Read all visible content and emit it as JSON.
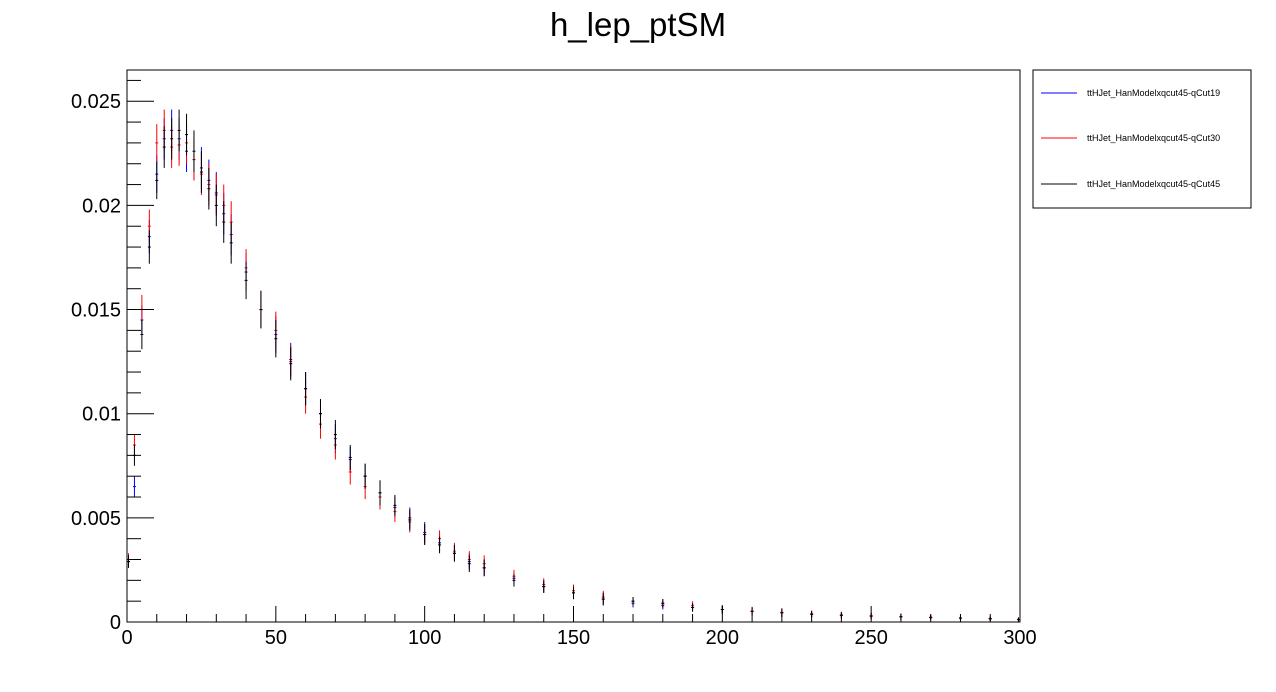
{
  "chart_data": {
    "type": "scatter",
    "title": "h_lep_ptSM",
    "xlabel": "",
    "ylabel": "",
    "xlim": [
      0,
      300
    ],
    "ylim": [
      0,
      0.0265
    ],
    "x_ticks": [
      0,
      50,
      100,
      150,
      200,
      250,
      300
    ],
    "x_tick_labels": [
      "0",
      "50",
      "100",
      "150",
      "200",
      "250",
      "300"
    ],
    "y_ticks": [
      0,
      0.005,
      0.01,
      0.015,
      0.02,
      0.025
    ],
    "y_tick_labels": [
      "0",
      "0.005",
      "0.01",
      "0.015",
      "0.02",
      "0.025"
    ],
    "grid": false,
    "legend_position": "outside-right-top",
    "bin_width": 1,
    "x": [
      0.5,
      2.5,
      5,
      7.5,
      10,
      12.5,
      15,
      17.5,
      20,
      22.5,
      25,
      27.5,
      30,
      32.5,
      35,
      40,
      45,
      50,
      55,
      60,
      65,
      70,
      75,
      80,
      85,
      90,
      95,
      100,
      105,
      110,
      115,
      120,
      130,
      140,
      150,
      160,
      170,
      180,
      190,
      200,
      210,
      220,
      230,
      240,
      250,
      260,
      270,
      280,
      290,
      299.5
    ],
    "series": [
      {
        "name": "ttHJet_HanModelxqcut45-qCut19",
        "color": "#0000ff",
        "values": [
          0.0029,
          0.0065,
          0.0145,
          0.0185,
          0.0215,
          0.0232,
          0.0236,
          0.0232,
          0.0226,
          0.0222,
          0.0218,
          0.0212,
          0.0206,
          0.0196,
          0.0186,
          0.0168,
          0.015,
          0.0138,
          0.0126,
          0.0112,
          0.01,
          0.0088,
          0.0078,
          0.007,
          0.0062,
          0.0055,
          0.005,
          0.0043,
          0.0038,
          0.0033,
          0.0029,
          0.0026,
          0.0021,
          0.0017,
          0.0014,
          0.0011,
          0.0009,
          0.0008,
          0.0007,
          0.0006,
          0.00052,
          0.00045,
          0.00038,
          0.00033,
          0.00029,
          0.00025,
          0.00022,
          0.00019,
          0.00016,
          0.00012
        ],
        "errors": [
          0.0003,
          0.0005,
          0.0007,
          0.0008,
          0.0009,
          0.001,
          0.001,
          0.001,
          0.001,
          0.001,
          0.001,
          0.001,
          0.001,
          0.001,
          0.001,
          0.0009,
          0.0009,
          0.0009,
          0.0008,
          0.0008,
          0.0007,
          0.0007,
          0.0006,
          0.0006,
          0.0006,
          0.0005,
          0.0005,
          0.0005,
          0.0004,
          0.0004,
          0.0004,
          0.0004,
          0.0003,
          0.0003,
          0.0003,
          0.0003,
          0.0002,
          0.0002,
          0.0002,
          0.0002,
          0.0002,
          0.0002,
          0.00015,
          0.00015,
          0.00015,
          0.00015,
          0.0001,
          0.0001,
          0.0001,
          0.0001
        ]
      },
      {
        "name": "ttHJet_HanModelxqcut45-qCut30",
        "color": "#ff0000",
        "values": [
          0.003,
          0.0085,
          0.015,
          0.019,
          0.023,
          0.0236,
          0.0228,
          0.0229,
          0.023,
          0.0222,
          0.0215,
          0.021,
          0.0205,
          0.02,
          0.0192,
          0.017,
          0.015,
          0.014,
          0.0125,
          0.0108,
          0.0095,
          0.0085,
          0.0072,
          0.0065,
          0.006,
          0.0053,
          0.0048,
          0.0042,
          0.004,
          0.0034,
          0.003,
          0.0028,
          0.0022,
          0.0018,
          0.0015,
          0.0012,
          0.001,
          0.0009,
          0.0008,
          0.0006,
          0.00053,
          0.00046,
          0.0004,
          0.00034,
          0.0003,
          0.00026,
          0.00023,
          0.0002,
          0.00017,
          0.00013
        ],
        "errors": [
          0.0003,
          0.0005,
          0.0007,
          0.0008,
          0.0009,
          0.001,
          0.001,
          0.001,
          0.001,
          0.001,
          0.001,
          0.001,
          0.001,
          0.001,
          0.001,
          0.0009,
          0.0009,
          0.0009,
          0.0008,
          0.0008,
          0.0007,
          0.0007,
          0.0006,
          0.0006,
          0.0006,
          0.0005,
          0.0005,
          0.0005,
          0.0004,
          0.0004,
          0.0004,
          0.0004,
          0.0003,
          0.0003,
          0.0003,
          0.0003,
          0.0002,
          0.0002,
          0.0002,
          0.0002,
          0.0002,
          0.0002,
          0.00015,
          0.00015,
          0.00015,
          0.00015,
          0.0001,
          0.0001,
          0.0001,
          0.0001
        ]
      },
      {
        "name": "ttHJet_HanModelxqcut45-qCut45",
        "color": "#000000",
        "values": [
          0.0029,
          0.008,
          0.0138,
          0.018,
          0.0212,
          0.0228,
          0.0232,
          0.0236,
          0.0234,
          0.0226,
          0.0216,
          0.0208,
          0.02,
          0.0192,
          0.0182,
          0.0164,
          0.015,
          0.0136,
          0.0124,
          0.0112,
          0.01,
          0.009,
          0.0079,
          0.007,
          0.0062,
          0.0056,
          0.0049,
          0.0042,
          0.0037,
          0.0033,
          0.0028,
          0.0026,
          0.002,
          0.0017,
          0.0014,
          0.0011,
          0.001,
          0.0009,
          0.0007,
          0.0006,
          0.0005,
          0.00044,
          0.00037,
          0.00032,
          0.00028,
          0.00025,
          0.00021,
          0.00018,
          0.00015,
          0.00011
        ],
        "errors": [
          0.0003,
          0.0005,
          0.0007,
          0.0008,
          0.0009,
          0.001,
          0.001,
          0.001,
          0.001,
          0.001,
          0.001,
          0.001,
          0.001,
          0.001,
          0.001,
          0.0009,
          0.0009,
          0.0009,
          0.0008,
          0.0008,
          0.0007,
          0.0007,
          0.0006,
          0.0006,
          0.0006,
          0.0005,
          0.0005,
          0.0005,
          0.0004,
          0.0004,
          0.0004,
          0.0004,
          0.0003,
          0.0003,
          0.0003,
          0.0003,
          0.0002,
          0.0002,
          0.0002,
          0.0002,
          0.0002,
          0.0002,
          0.00015,
          0.00015,
          0.00015,
          0.00015,
          0.0001,
          0.0001,
          0.0001,
          0.0001
        ]
      }
    ]
  }
}
